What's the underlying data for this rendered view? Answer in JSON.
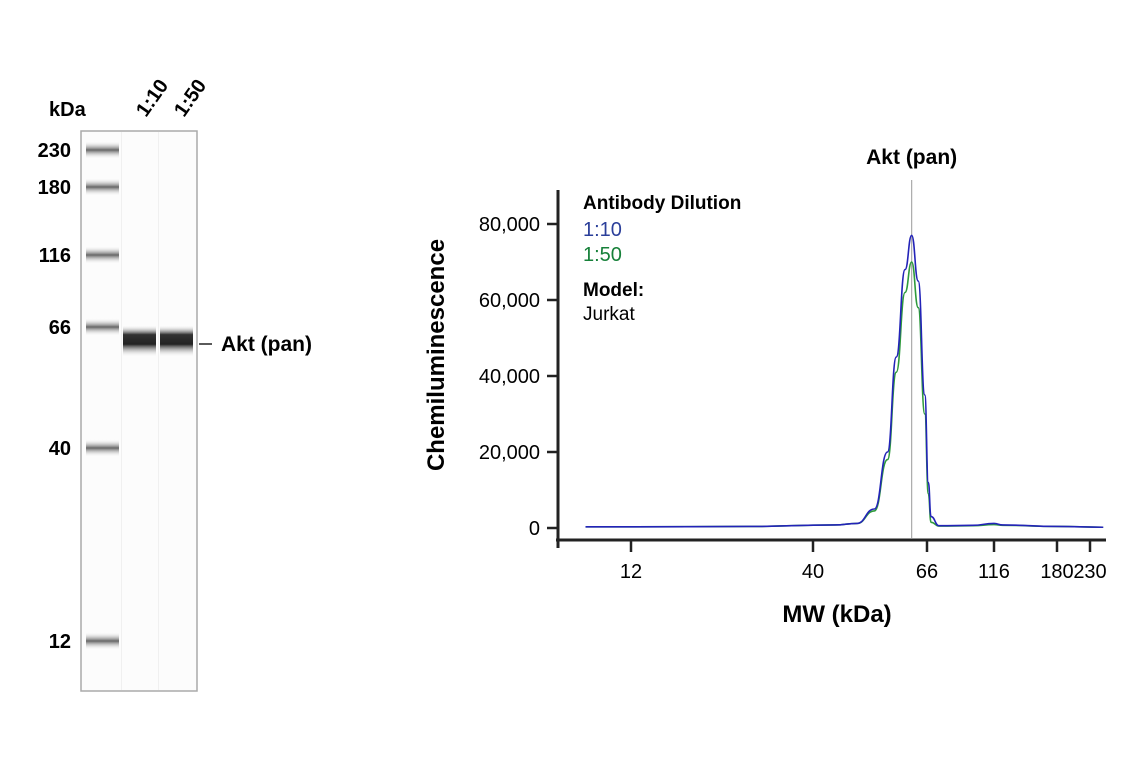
{
  "gel": {
    "unit_label": "kDa",
    "lane_labels": [
      "1:10",
      "1:50"
    ],
    "markers": [
      {
        "label": "230",
        "kda": 230
      },
      {
        "label": "180",
        "kda": 180
      },
      {
        "label": "116",
        "kda": 116
      },
      {
        "label": "66",
        "kda": 66
      },
      {
        "label": "40",
        "kda": 40
      },
      {
        "label": "12",
        "kda": 12
      }
    ],
    "band_label": "Akt (pan)"
  },
  "chart_data": {
    "type": "line",
    "title": "Akt (pan)",
    "xlabel": "MW (kDa)",
    "ylabel": "Chemiluminescence",
    "x_ticks": [
      12,
      40,
      66,
      116,
      180,
      230
    ],
    "x_tick_labels": [
      "12",
      "40",
      "66",
      "116",
      "180",
      "230"
    ],
    "y_ticks": [
      0,
      20000,
      40000,
      60000,
      80000
    ],
    "y_tick_labels": [
      "0",
      "20,000",
      "40,000",
      "60,000",
      "80,000"
    ],
    "ylim": [
      0,
      90000
    ],
    "grid": false,
    "legend": {
      "title": "Antibody Dilution",
      "model_label": "Model:",
      "model_value": "Jurkat",
      "placement": "top-left"
    },
    "marker_line_kda": 62.5,
    "series": [
      {
        "name": "1:10",
        "color": "#2323b8",
        "x": [
          5,
          12,
          30,
          45,
          50,
          54,
          57,
          59,
          61,
          62.5,
          64,
          65.5,
          67,
          69,
          75,
          100,
          116,
          125,
          180,
          250
        ],
        "y": [
          300,
          300,
          400,
          800,
          1200,
          5000,
          20000,
          45000,
          68000,
          77000,
          65000,
          35000,
          12000,
          3000,
          600,
          700,
          1200,
          800,
          400,
          200
        ]
      },
      {
        "name": "1:50",
        "color": "#2e9a3c",
        "x": [
          5,
          12,
          30,
          45,
          50,
          54,
          57,
          59,
          61,
          62.5,
          64,
          65.5,
          67,
          69,
          75,
          100,
          116,
          125,
          180,
          250
        ],
        "y": [
          300,
          300,
          400,
          800,
          1200,
          4500,
          18000,
          41000,
          62000,
          70000,
          58000,
          30000,
          9000,
          1500,
          500,
          600,
          900,
          700,
          400,
          200
        ]
      }
    ],
    "legend_colors": {
      "1:10": "#2b3f9a",
      "1:50": "#17813a"
    }
  }
}
